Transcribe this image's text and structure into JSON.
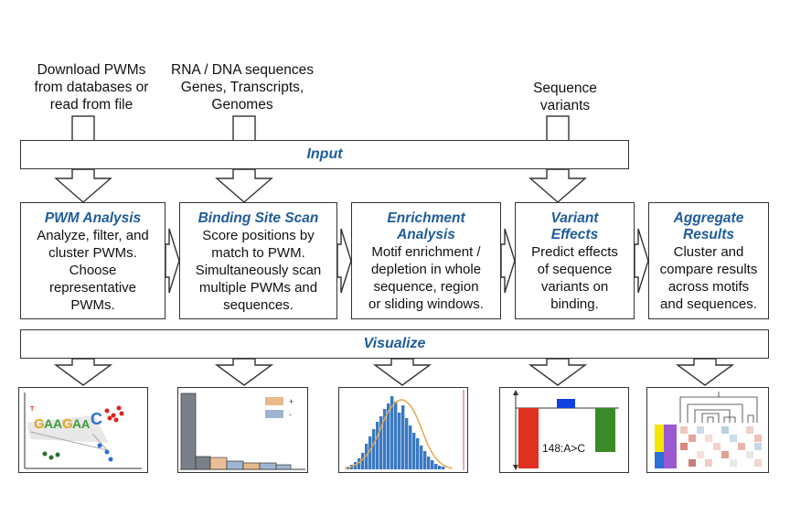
{
  "inputs": {
    "pwm_source": [
      "Download PWMs",
      "from databases or",
      "read from file"
    ],
    "sequences": [
      "RNA / DNA sequences",
      "Genes, Transcripts,",
      "Genomes"
    ],
    "variants": [
      "Sequence",
      "variants"
    ]
  },
  "input_bar": {
    "label": "Input"
  },
  "visualize_bar": {
    "label": "Visualize"
  },
  "stages": [
    {
      "title": [
        "PWM Analysis"
      ],
      "desc": [
        "Analyze, filter, and",
        "cluster PWMs.",
        "Choose",
        "representative",
        "PWMs."
      ]
    },
    {
      "title": [
        "Binding Site Scan"
      ],
      "desc": [
        "Score positions by",
        "match to PWM.",
        "Simultaneously scan",
        "multiple PWMs and",
        "sequences."
      ]
    },
    {
      "title": [
        "Enrichment",
        "Analysis"
      ],
      "desc": [
        "Motif enrichment /",
        "depletion in whole",
        "sequence, region",
        "or sliding windows."
      ]
    },
    {
      "title": [
        "Variant",
        "Effects"
      ],
      "desc": [
        "Predict effects",
        "of sequence",
        "variants on",
        "binding."
      ]
    },
    {
      "title": [
        "Aggregate",
        "Results"
      ],
      "desc": [
        "Cluster and",
        "compare results",
        "across motifs",
        "and sequences."
      ]
    }
  ],
  "thumbnails": {
    "logo": {
      "letters": "GAAGAAC",
      "icon": "sequence-logo-scatter"
    },
    "histogram": {
      "legend": [
        {
          "label": "+",
          "color": "#e8b98a"
        },
        {
          "label": "-",
          "color": "#9fb4d0"
        }
      ]
    },
    "variant": {
      "label": "148:A>C",
      "colors": {
        "ref": "#e03020",
        "alt": "#3a8a2a",
        "mid": "#1040e0"
      }
    },
    "heatmap": {
      "icon": "dendrogram-heatmap"
    }
  },
  "colors": {
    "accent": "#1f5c99",
    "border": "#333333"
  }
}
